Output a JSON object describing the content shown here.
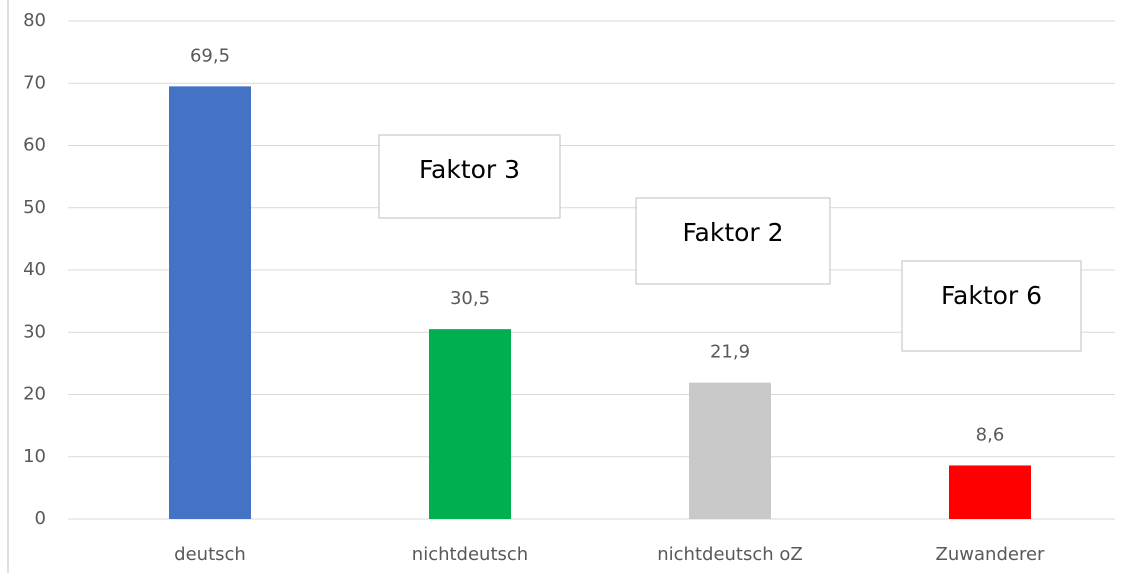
{
  "chart_data": {
    "type": "bar",
    "categories": [
      "deutsch",
      "nichtdeutsch",
      "nichtdeutsch oZ",
      "Zuwanderer"
    ],
    "values": [
      69.5,
      30.5,
      21.9,
      8.6
    ],
    "value_labels": [
      "69,5",
      "30,5",
      "21,9",
      "8,6"
    ],
    "colors": [
      "#4472c4",
      "#00b050",
      "#c9c9c9",
      "#ff0000"
    ],
    "ylim": [
      0,
      80
    ],
    "yticks": [
      0,
      10,
      20,
      30,
      40,
      50,
      60,
      70,
      80
    ],
    "grid": true,
    "annotations": [
      "Faktor 3",
      "Faktor 2",
      "Faktor 6"
    ]
  }
}
